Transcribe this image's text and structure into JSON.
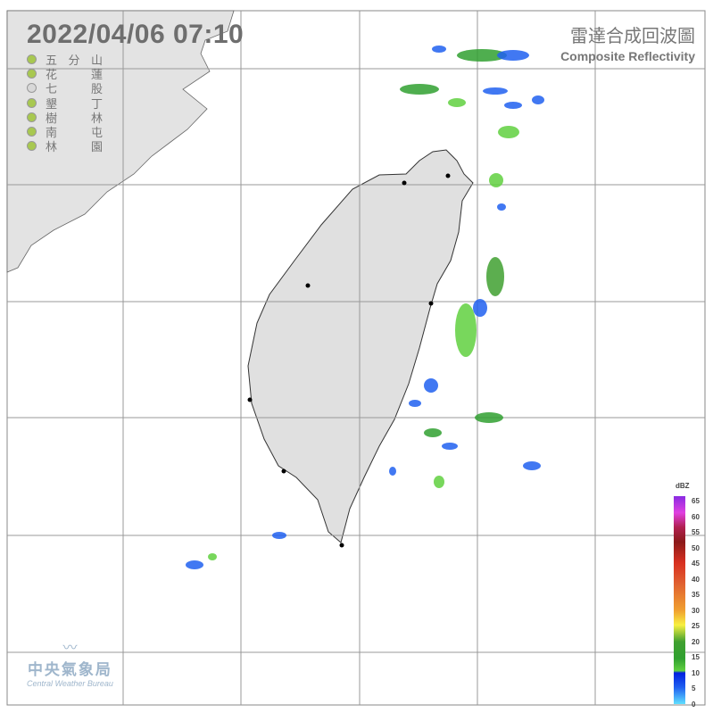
{
  "header": {
    "datetime": "2022/04/06  07:10",
    "title_zh": "雷達合成回波圖",
    "title_en": "Composite Reflectivity"
  },
  "stations": [
    {
      "name": "五分山",
      "status_color": "#a8c850"
    },
    {
      "name": "花蓮",
      "status_color": "#a8c850"
    },
    {
      "name": "七股",
      "status_color": "#d8d8d8"
    },
    {
      "name": "墾丁",
      "status_color": "#a8c850"
    },
    {
      "name": "樹林",
      "status_color": "#a8c850"
    },
    {
      "name": "南屯",
      "status_color": "#a8c850"
    },
    {
      "name": "林園",
      "status_color": "#a8c850"
    }
  ],
  "colorbar": {
    "unit": "dBZ",
    "labels": [
      "65",
      "60",
      "55",
      "50",
      "45",
      "40",
      "35",
      "30",
      "25",
      "20",
      "15",
      "10",
      "5",
      "0"
    ]
  },
  "logo": {
    "zh": "中央氣象局",
    "en": "Central Weather Bureau"
  }
}
